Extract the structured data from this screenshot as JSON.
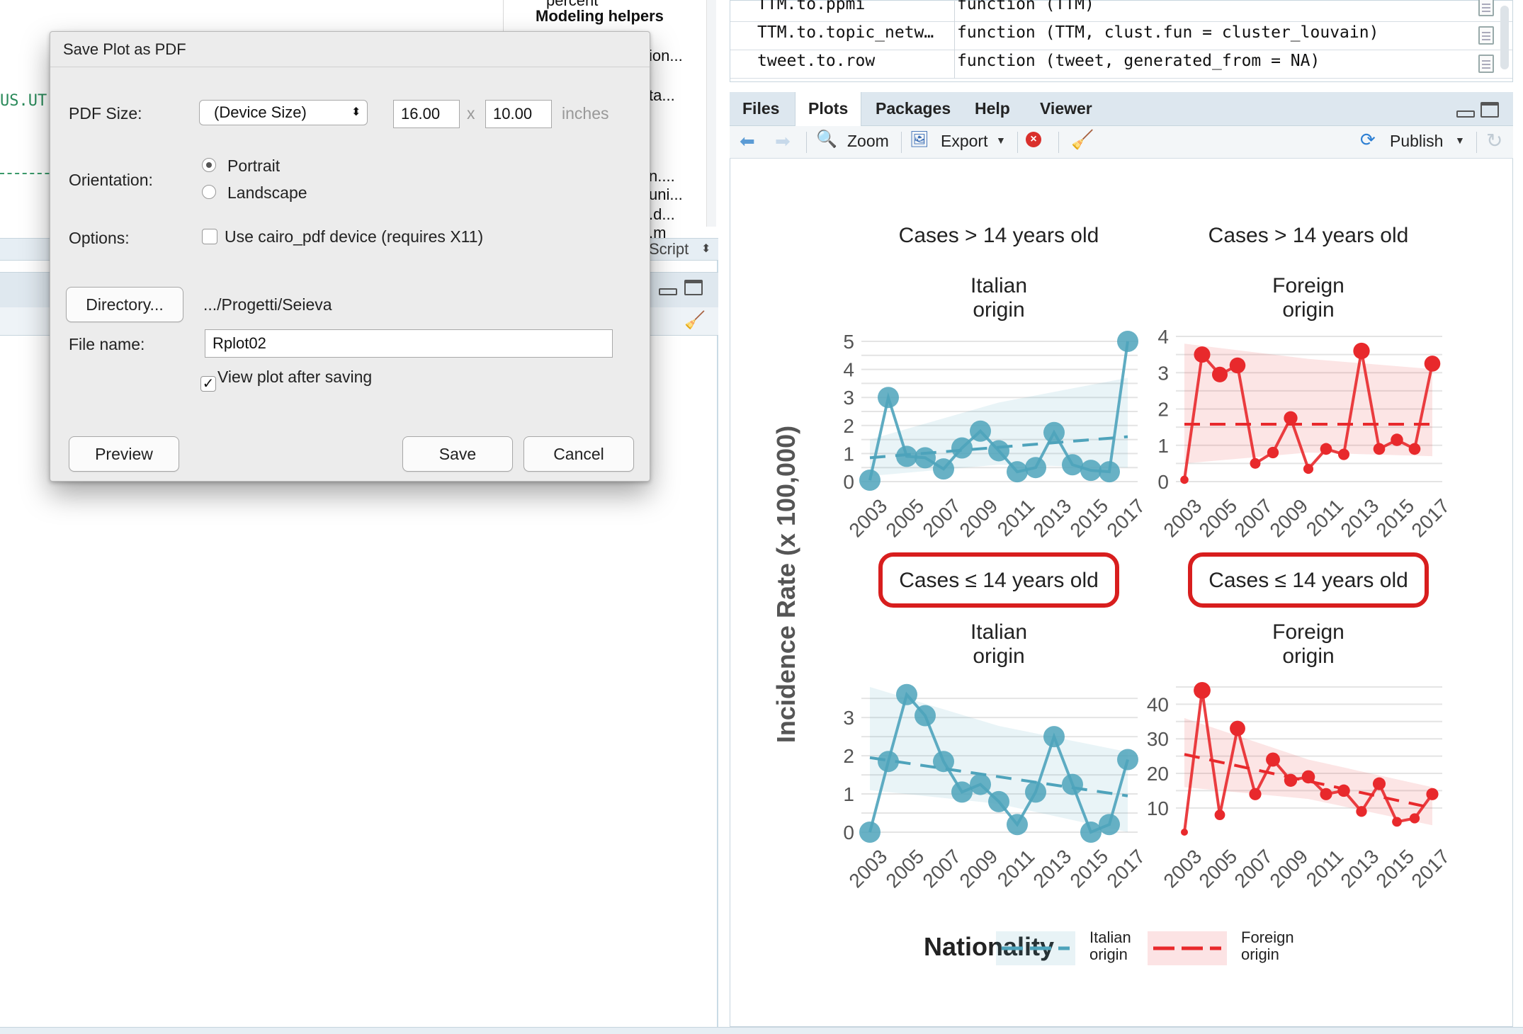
{
  "left_background": {
    "env_items": [
      "percent",
      "Modeling helpers",
      "ion...",
      "ta...",
      "n....",
      "uni...",
      ".d...",
      ".m"
    ],
    "code_fragment": "US.UT",
    "script_selector": "Script"
  },
  "function_table": {
    "rows": [
      {
        "name": "TTM.to.ppmi",
        "definition": "function (TTM)"
      },
      {
        "name": "TTM.to.topic_netw…",
        "definition": "function (TTM, clust.fun = cluster_louvain)"
      },
      {
        "name": "tweet.to.row",
        "definition": "function (tweet, generated_from = NA)"
      }
    ]
  },
  "plots_pane": {
    "tabs": [
      "Files",
      "Plots",
      "Packages",
      "Help",
      "Viewer"
    ],
    "active_tab": "Plots",
    "toolbar": {
      "zoom": "Zoom",
      "export": "Export",
      "publish": "Publish"
    }
  },
  "dialog": {
    "title": "Save Plot as PDF",
    "pdf_size_label": "PDF Size:",
    "pdf_size_value": "(Device Size)",
    "width": "16.00",
    "times": "x",
    "height": "10.00",
    "units": "inches",
    "orientation_label": "Orientation:",
    "orientation_options": [
      "Portrait",
      "Landscape"
    ],
    "orientation_selected": "Portrait",
    "options_label": "Options:",
    "cairo_option": "Use cairo_pdf device (requires X11)",
    "cairo_checked": false,
    "directory_button": "Directory...",
    "directory_path": ".../Progetti/Seieva",
    "file_name_label": "File name:",
    "file_name": "Rplot02",
    "view_after_label": "View plot after saving",
    "view_after_checked": true,
    "preview_button": "Preview",
    "save_button": "Save",
    "cancel_button": "Cancel"
  },
  "chart_data": {
    "type": "line",
    "ylabel": "Incidence Rate (x 100,000)",
    "legend_title": "Nationality",
    "legend_placement": "bottom",
    "colors": {
      "italian": "#4ea3bb",
      "foreign": "#e8292c",
      "highlight_box": "#d81e1e"
    },
    "x_ticks": [
      "2003",
      "2005",
      "2007",
      "2009",
      "2011",
      "2013",
      "2015",
      "2017"
    ],
    "panels": [
      {
        "strip": "Cases > 14 years old",
        "title": "Italian origin",
        "highlighted": false,
        "x": [
          2003,
          2004,
          2005,
          2006,
          2007,
          2008,
          2009,
          2010,
          2011,
          2012,
          2013,
          2014,
          2015,
          2016,
          2017
        ],
        "y": [
          0.05,
          3.0,
          0.9,
          0.85,
          0.45,
          1.2,
          1.8,
          1.1,
          0.35,
          0.5,
          1.75,
          0.6,
          0.4,
          0.35,
          5.0
        ],
        "ylim": [
          0,
          5
        ],
        "yticks": [
          0,
          1,
          2,
          3,
          4,
          5
        ],
        "trend": [
          0.85,
          1.6
        ],
        "band_low": [
          0.2,
          0.5
        ],
        "band_high": [
          1.5,
          3.7
        ],
        "color": "#4ea3bb",
        "series": "Italian origin",
        "big_points": true
      },
      {
        "strip": "Cases > 14 years old",
        "title": "Foreign origin",
        "highlighted": false,
        "x": [
          2003,
          2004,
          2005,
          2006,
          2007,
          2008,
          2009,
          2010,
          2011,
          2012,
          2013,
          2014,
          2015,
          2016,
          2017
        ],
        "y": [
          0.05,
          3.5,
          2.95,
          3.2,
          0.5,
          0.8,
          1.75,
          0.35,
          0.9,
          0.75,
          3.6,
          0.9,
          1.15,
          0.9,
          3.25
        ],
        "ylim": [
          0,
          4
        ],
        "yticks": [
          0,
          1,
          2,
          3,
          4
        ],
        "trend": [
          1.58,
          1.58
        ],
        "band_low": [
          0.5,
          0.7
        ],
        "band_high": [
          3.8,
          3.1
        ],
        "color": "#e8292c",
        "series": "Foreign origin",
        "big_points": false
      },
      {
        "strip": "Cases ≤ 14 years old",
        "title": "Italian origin",
        "highlighted": true,
        "x": [
          2003,
          2004,
          2005,
          2006,
          2007,
          2008,
          2009,
          2010,
          2011,
          2012,
          2013,
          2014,
          2015,
          2016,
          2017
        ],
        "y": [
          0.0,
          1.85,
          3.6,
          3.05,
          1.85,
          1.05,
          1.25,
          0.8,
          0.2,
          1.05,
          2.5,
          1.25,
          0.0,
          0.2,
          1.9
        ],
        "ylim": [
          0,
          3.8
        ],
        "yticks": [
          0,
          1,
          2,
          3
        ],
        "trend": [
          1.95,
          0.95
        ],
        "band_low": [
          1.1,
          0.0
        ],
        "band_high": [
          3.8,
          2.1
        ],
        "color": "#4ea3bb",
        "series": "Italian origin",
        "big_points": true
      },
      {
        "strip": "Cases ≤ 14 years old",
        "title": "Foreign origin",
        "highlighted": true,
        "x": [
          2003,
          2004,
          2005,
          2006,
          2007,
          2008,
          2009,
          2010,
          2011,
          2012,
          2013,
          2014,
          2015,
          2016,
          2017
        ],
        "y": [
          3,
          44,
          8,
          33,
          14,
          24,
          18,
          19,
          14,
          15,
          9,
          17,
          6,
          7,
          14
        ],
        "ylim": [
          3,
          45
        ],
        "yticks": [
          10,
          20,
          30,
          40
        ],
        "trend": [
          25.5,
          10.0
        ],
        "band_low": [
          16,
          5
        ],
        "band_high": [
          36,
          16
        ],
        "color": "#e8292c",
        "series": "Foreign origin",
        "big_points": false
      }
    ],
    "legend": [
      {
        "label": "Italian origin",
        "color": "#4ea3bb"
      },
      {
        "label": "Foreign origin",
        "color": "#e8292c"
      }
    ]
  }
}
